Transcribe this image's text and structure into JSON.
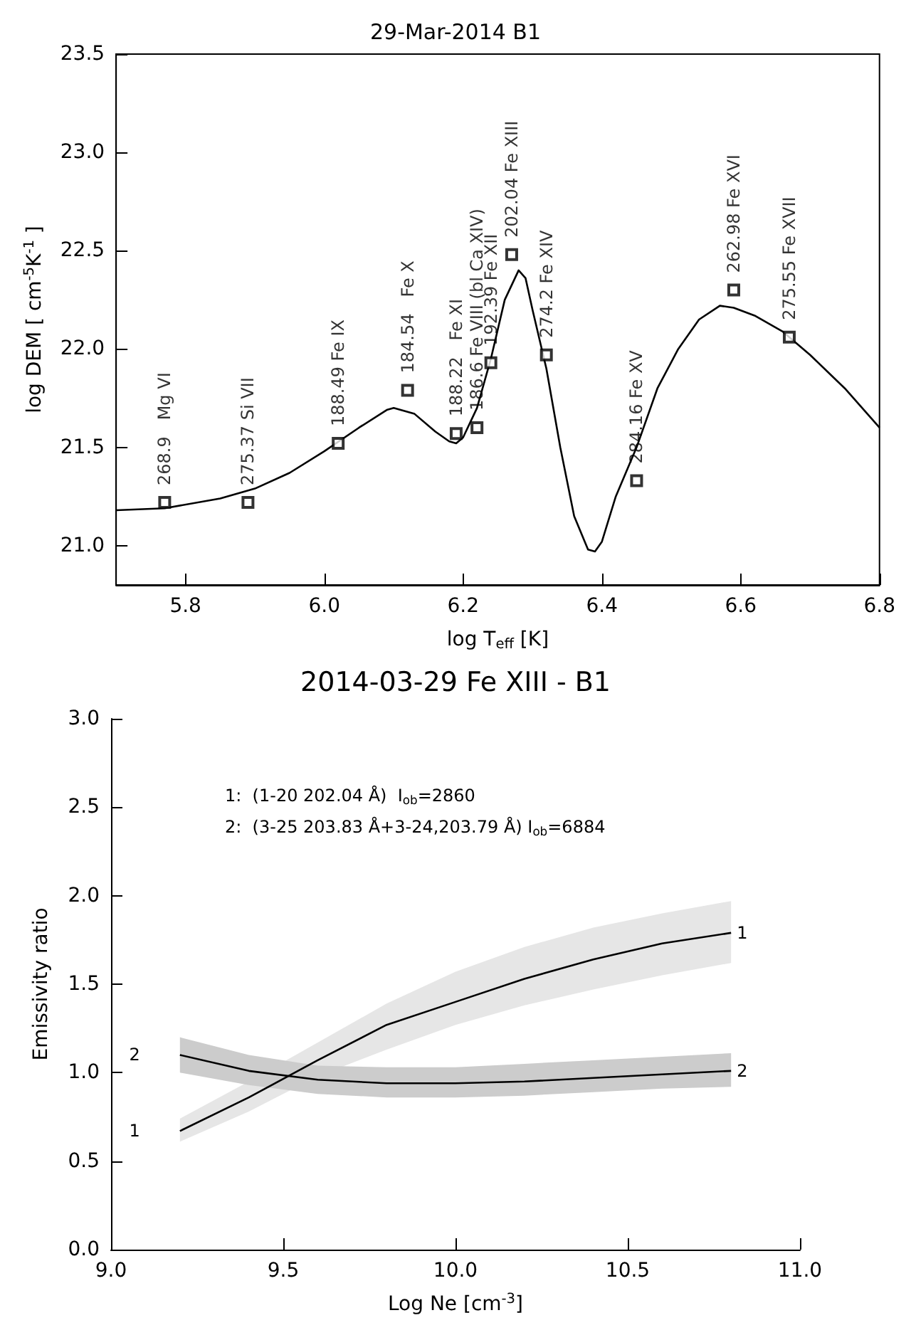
{
  "chart_data": [
    {
      "type": "scatter",
      "title": "29-Mar-2014 B1",
      "xlabel": "log T$_{eff}$ [K]",
      "ylabel": "log DEM [ cm$^{-5}$K$^{-1}$ ]",
      "xlim": [
        5.7,
        6.8
      ],
      "ylim": [
        20.8,
        23.5
      ],
      "xticks": [
        5.8,
        {
          "value": 6,
          "label": "6.0"
        },
        6.2,
        6.4,
        6.6,
        6.8
      ],
      "yticks": [
        {
          "value": 21,
          "label": "21.0"
        },
        21.5,
        {
          "value": 22,
          "label": "22.0"
        },
        22.5,
        {
          "value": 23,
          "label": "23.0"
        },
        23.5
      ],
      "grid": false,
      "legend": false,
      "marker": "square",
      "series": [
        {
          "type": "line",
          "color": "#000000",
          "marker": "none",
          "x": [
            5.7,
            5.77,
            5.85,
            5.9,
            5.95,
            6.0,
            6.05,
            6.09,
            6.1,
            6.13,
            6.16,
            6.18,
            6.19,
            6.2,
            6.22,
            6.24,
            6.26,
            6.28,
            6.29,
            6.3,
            6.32,
            6.34,
            6.36,
            6.38,
            6.39,
            6.4,
            6.42,
            6.45,
            6.48,
            6.51,
            6.54,
            6.57,
            6.59,
            6.62,
            6.66,
            6.7,
            6.75,
            6.8
          ],
          "values": [
            21.18,
            21.19,
            21.24,
            21.29,
            21.37,
            21.48,
            21.6,
            21.69,
            21.7,
            21.67,
            21.58,
            21.53,
            21.52,
            21.55,
            21.7,
            21.95,
            22.25,
            22.4,
            22.36,
            22.2,
            21.9,
            21.5,
            21.15,
            20.98,
            20.97,
            21.02,
            21.25,
            21.5,
            21.8,
            22.0,
            22.15,
            22.22,
            22.21,
            22.17,
            22.09,
            21.97,
            21.8,
            21.6
          ]
        },
        {
          "color": "#000000",
          "x": [
            5.77,
            5.89,
            6.02,
            6.12,
            6.19,
            6.22,
            6.24,
            6.27,
            6.32,
            6.45,
            6.59,
            6.67
          ],
          "values": [
            21.22,
            21.22,
            21.52,
            21.79,
            21.57,
            21.6,
            21.93,
            22.48,
            21.97,
            21.33,
            22.3,
            22.06
          ]
        }
      ],
      "annotations": [
        {
          "text": "268.9   Mg VI",
          "x": 5.77,
          "y": 21.22
        },
        {
          "text": "275.37 Si VII",
          "x": 5.89,
          "y": 21.22
        },
        {
          "text": "188.49 Fe IX",
          "x": 6.02,
          "y": 21.52
        },
        {
          "text": "184.54   Fe X",
          "x": 6.12,
          "y": 21.79
        },
        {
          "text": "188.22   Fe XI",
          "x": 6.19,
          "y": 21.57
        },
        {
          "text": "186.6 Fe VIII (bl Ca XIV)",
          "x": 6.22,
          "y": 21.6
        },
        {
          "text": "192.39 Fe XII",
          "x": 6.24,
          "y": 21.93
        },
        {
          "text": "202.04 Fe XIII",
          "x": 6.27,
          "y": 22.48
        },
        {
          "text": "274.2 Fe XIV",
          "x": 6.32,
          "y": 21.97
        },
        {
          "text": "284.16 Fe XV",
          "x": 6.45,
          "y": 21.33
        },
        {
          "text": "262.98 Fe XVI",
          "x": 6.59,
          "y": 22.3
        },
        {
          "text": "275.55 Fe XVII",
          "x": 6.67,
          "y": 22.06
        }
      ]
    },
    {
      "type": "line",
      "title": "2014-03-29 Fe XIII - B1",
      "xlabel": "Log Ne [cm$^{-3}$]",
      "ylabel": "Emissivity ratio",
      "xlim": [
        9,
        11
      ],
      "ylim": [
        0,
        3
      ],
      "xticks": [
        {
          "value": 9,
          "label": "9.0"
        },
        9.5,
        {
          "value": 10,
          "label": "10.0"
        },
        10.5,
        {
          "value": 11,
          "label": "11.0"
        }
      ],
      "yticks": [
        {
          "value": 0,
          "label": "0.0"
        },
        0.5,
        {
          "value": 1,
          "label": "1.0"
        },
        1.5,
        {
          "value": 2,
          "label": "2.0"
        },
        2.5,
        {
          "value": 3,
          "label": "3.0"
        }
      ],
      "grid": false,
      "legend": false,
      "marker": "none",
      "x": [
        9.2,
        9.4,
        9.6,
        9.8,
        10.0,
        10.2,
        10.4,
        10.6,
        10.8
      ],
      "series": [
        {
          "name": "1",
          "color": "#000000",
          "values": [
            0.67,
            0.86,
            1.07,
            1.27,
            1.4,
            1.53,
            1.64,
            1.73,
            1.79
          ],
          "lower": [
            0.61,
            0.78,
            0.98,
            1.13,
            1.27,
            1.38,
            1.47,
            1.55,
            1.62
          ],
          "upper": [
            0.74,
            0.95,
            1.17,
            1.39,
            1.57,
            1.71,
            1.82,
            1.9,
            1.97
          ]
        },
        {
          "name": "2",
          "color": "#000000",
          "values": [
            1.1,
            1.01,
            0.96,
            0.94,
            0.94,
            0.95,
            0.97,
            0.99,
            1.01
          ],
          "lower": [
            1.0,
            0.93,
            0.88,
            0.86,
            0.86,
            0.87,
            0.89,
            0.91,
            0.92
          ],
          "upper": [
            1.2,
            1.1,
            1.04,
            1.03,
            1.03,
            1.05,
            1.07,
            1.09,
            1.11
          ]
        }
      ],
      "annotations": [
        "1:  (1-20 202.04 Å)  I$_{ob}$=2860",
        "2:  (3-25 203.83 Å+3-24,203.79 Å) I$_{ob}$=6884"
      ]
    }
  ]
}
